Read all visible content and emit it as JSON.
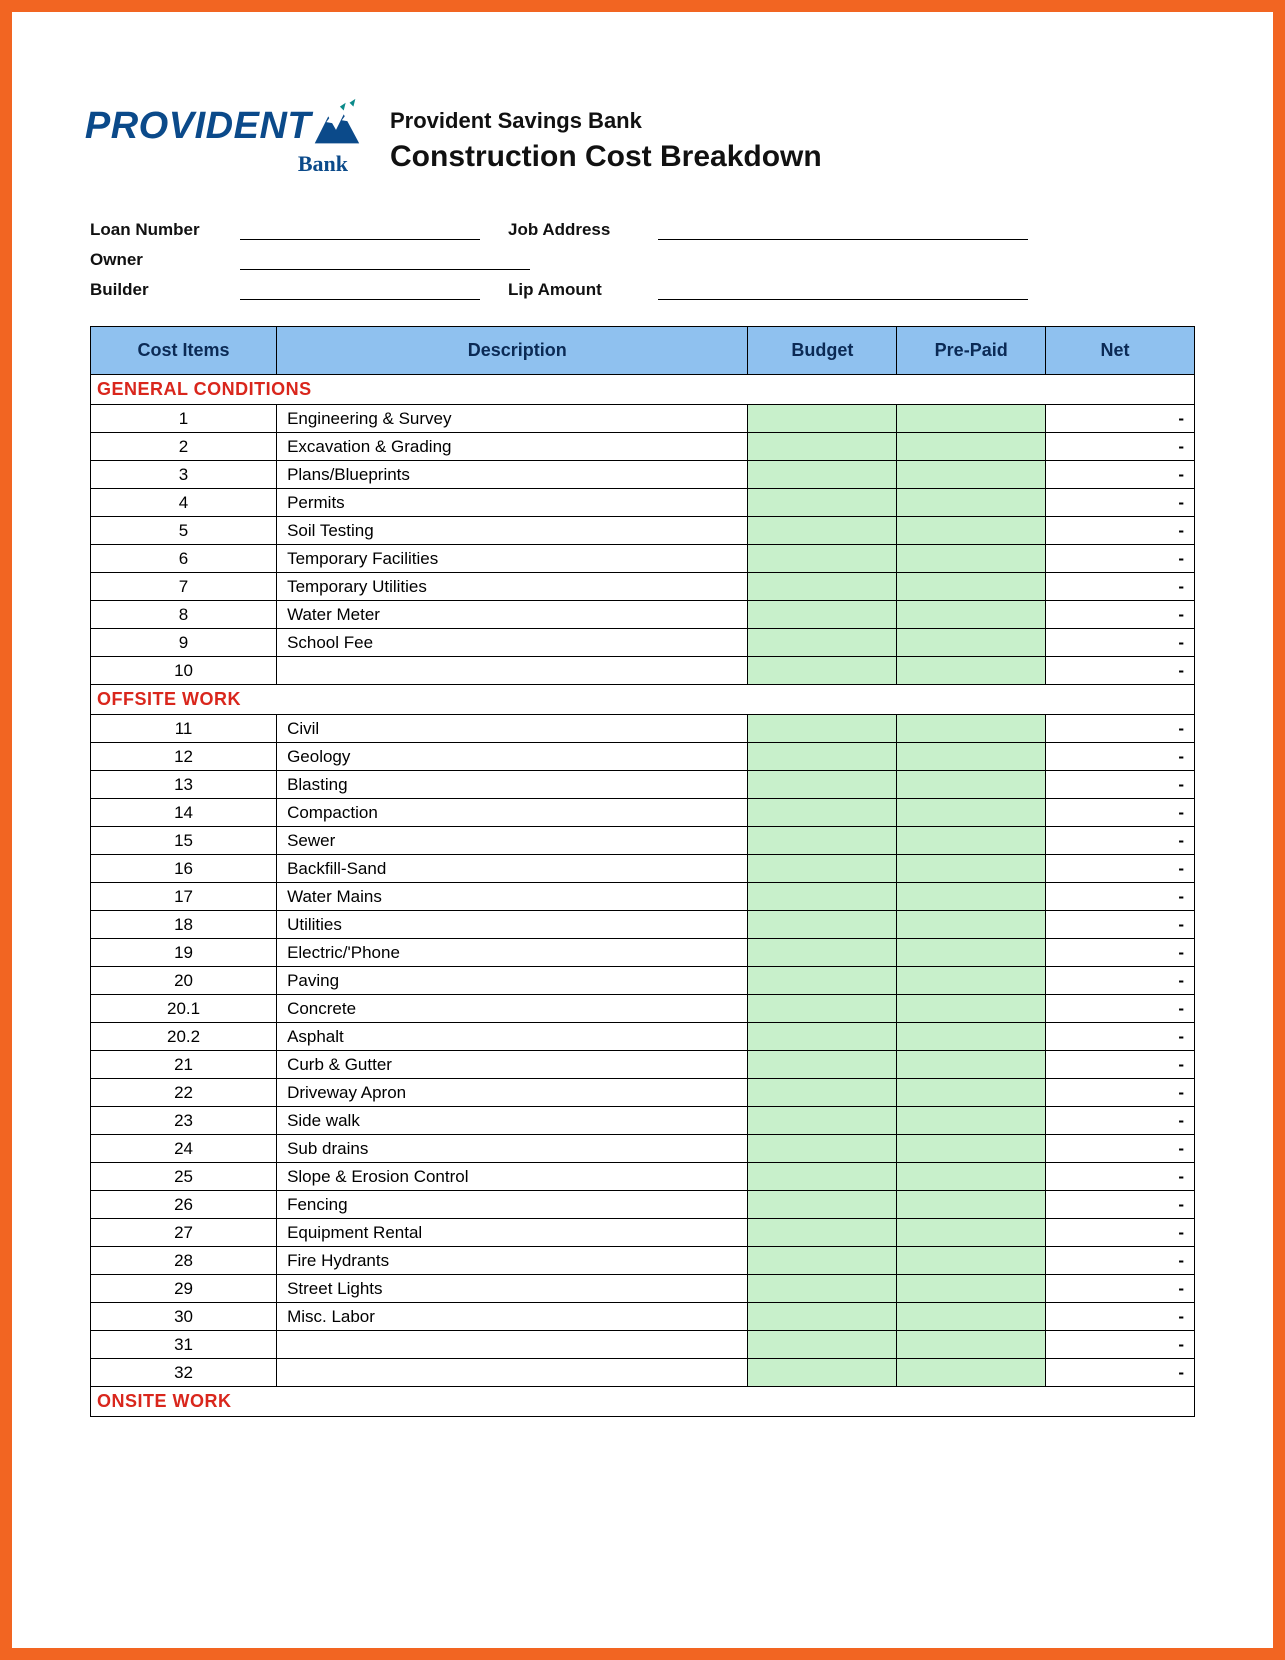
{
  "logo": {
    "text_prov": "PROV",
    "text_i": "I",
    "text_dent": "DENT",
    "bank": "Bank",
    "color_primary": "#0b4a8a",
    "color_accent": "#0b8a8a"
  },
  "title": {
    "subtitle": "Provident Savings Bank",
    "main": "Construction Cost Breakdown"
  },
  "form": {
    "loan_number": "Loan Number",
    "job_address": "Job Address",
    "owner": "Owner",
    "builder": "Builder",
    "lip_amount": "Lip Amount"
  },
  "table": {
    "columns": [
      "Cost  Items",
      "Description",
      "Budget",
      "Pre-Paid",
      "Net"
    ],
    "header_bg": "#8fc1ef",
    "header_fg": "#0b2a55",
    "cell_green": "#c8f0cb",
    "section_color": "#d9261c",
    "border_color": "#000000",
    "net_placeholder": "-",
    "sections": [
      {
        "title": "GENERAL CONDITIONS",
        "rows": [
          {
            "n": "1",
            "d": "Engineering & Survey"
          },
          {
            "n": "2",
            "d": "Excavation & Grading"
          },
          {
            "n": "3",
            "d": "Plans/Blueprints"
          },
          {
            "n": "4",
            "d": "Permits"
          },
          {
            "n": "5",
            "d": "Soil Testing"
          },
          {
            "n": "6",
            "d": "Temporary Facilities"
          },
          {
            "n": "7",
            "d": "Temporary Utilities"
          },
          {
            "n": "8",
            "d": "Water Meter"
          },
          {
            "n": "9",
            "d": "School Fee"
          },
          {
            "n": "10",
            "d": ""
          }
        ]
      },
      {
        "title": "OFFSITE WORK",
        "rows": [
          {
            "n": "11",
            "d": "Civil"
          },
          {
            "n": "12",
            "d": "Geology"
          },
          {
            "n": "13",
            "d": "Blasting"
          },
          {
            "n": "14",
            "d": "Compaction"
          },
          {
            "n": "15",
            "d": "Sewer"
          },
          {
            "n": "16",
            "d": "Backfill-Sand"
          },
          {
            "n": "17",
            "d": "Water Mains"
          },
          {
            "n": "18",
            "d": "Utilities"
          },
          {
            "n": "19",
            "d": "Electric/'Phone"
          },
          {
            "n": "20",
            "d": "Paving"
          },
          {
            "n": "20.1",
            "d": "Concrete"
          },
          {
            "n": "20.2",
            "d": "Asphalt"
          },
          {
            "n": "21",
            "d": "Curb & Gutter"
          },
          {
            "n": "22",
            "d": "Driveway Apron"
          },
          {
            "n": "23",
            "d": "Side walk"
          },
          {
            "n": "24",
            "d": "Sub drains"
          },
          {
            "n": "25",
            "d": "Slope & Erosion Control"
          },
          {
            "n": "26",
            "d": "Fencing"
          },
          {
            "n": "27",
            "d": "Equipment Rental"
          },
          {
            "n": "28",
            "d": "Fire Hydrants"
          },
          {
            "n": "29",
            "d": "Street Lights"
          },
          {
            "n": "30",
            "d": "Misc. Labor"
          },
          {
            "n": "31",
            "d": ""
          },
          {
            "n": "32",
            "d": ""
          }
        ]
      },
      {
        "title": "ONSITE WORK",
        "rows": []
      }
    ]
  }
}
